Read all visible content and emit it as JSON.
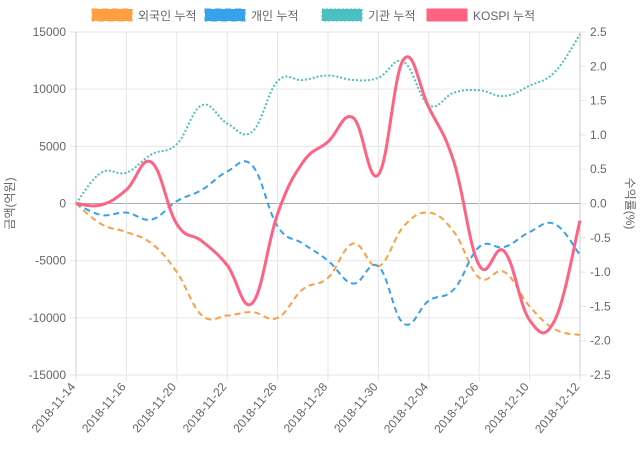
{
  "chart_data": {
    "type": "line",
    "x": [
      "2018-11-14",
      "2018-11-15",
      "2018-11-16",
      "2018-11-19",
      "2018-11-20",
      "2018-11-21",
      "2018-11-22",
      "2018-11-23",
      "2018-11-26",
      "2018-11-27",
      "2018-11-28",
      "2018-11-29",
      "2018-11-30",
      "2018-12-03",
      "2018-12-04",
      "2018-12-05",
      "2018-12-06",
      "2018-12-07",
      "2018-12-10",
      "2018-12-11",
      "2018-12-12"
    ],
    "xtick_labels": [
      "2018-11-14",
      "2018-11-16",
      "2018-11-20",
      "2018-11-22",
      "2018-11-26",
      "2018-11-28",
      "2018-11-30",
      "2018-12-04",
      "2018-12-06",
      "2018-12-10",
      "2018-12-12"
    ],
    "ylabel": "금액(억원)",
    "y2label": "수익률(%)",
    "ylim": [
      -15000,
      15000
    ],
    "y2lim": [
      -2.5,
      2.5
    ],
    "yticks": [
      15000,
      10000,
      5000,
      0,
      -5000,
      -10000,
      -15000
    ],
    "y2ticks": [
      2.5,
      2.0,
      1.5,
      1.0,
      0.5,
      0,
      -0.5,
      -1.0,
      -1.5,
      -2.0,
      -2.5
    ],
    "grid": true,
    "legend_position": "top",
    "series": [
      {
        "name": "외국인 누적",
        "axis": "left",
        "color": "#ff9f40",
        "style": "dashed",
        "values": [
          0,
          -1800,
          -2500,
          -3500,
          -6000,
          -9800,
          -9800,
          -9500,
          -10000,
          -7500,
          -6500,
          -3500,
          -5500,
          -2000,
          -800,
          -2500,
          -6500,
          -6000,
          -9000,
          -11000,
          -11500
        ]
      },
      {
        "name": "개인 누적",
        "axis": "left",
        "color": "#36a2eb",
        "style": "dashed",
        "values": [
          0,
          -1000,
          -800,
          -1400,
          200,
          1200,
          2800,
          3300,
          -2000,
          -3500,
          -5000,
          -7000,
          -5500,
          -10500,
          -8500,
          -7500,
          -3800,
          -3800,
          -2500,
          -1800,
          -4500
        ]
      },
      {
        "name": "기관 누적",
        "axis": "left",
        "color": "#4bc0c0",
        "style": "dotted",
        "values": [
          0,
          2700,
          2700,
          4300,
          5200,
          8600,
          7000,
          6300,
          10700,
          10800,
          11200,
          10800,
          11000,
          12400,
          8600,
          9700,
          9900,
          9400,
          10300,
          11500,
          14800
        ]
      },
      {
        "name": "KOSPI 누적",
        "axis": "right",
        "color": "#ff6384",
        "style": "solid",
        "values": [
          0,
          -0.02,
          0.2,
          0.6,
          -0.3,
          -0.55,
          -0.9,
          -1.45,
          -0.15,
          0.6,
          0.9,
          1.25,
          0.42,
          2.1,
          1.4,
          0.6,
          -0.9,
          -0.7,
          -1.7,
          -1.7,
          -0.25
        ]
      }
    ]
  }
}
